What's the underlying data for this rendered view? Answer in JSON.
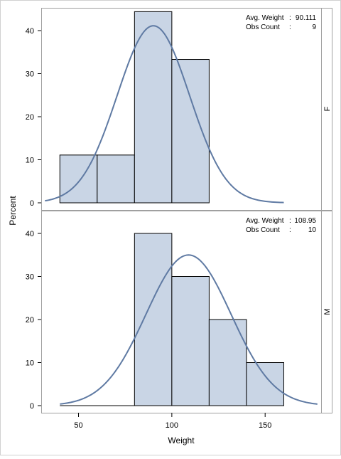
{
  "chart_data": {
    "type": "histogram",
    "ylabel": "Percent",
    "xlabel": "Weight",
    "x_ticks": [
      50,
      100,
      150
    ],
    "xlim": [
      30,
      180
    ],
    "y_ticks": [
      0,
      10,
      20,
      30,
      40
    ],
    "ylim": [
      0,
      45
    ],
    "colors": {
      "bar_fill": "#c9d5e5",
      "bar_stroke": "#000000",
      "curve": "#5f7aa3",
      "frame": "#a0a0a0"
    },
    "panels": [
      {
        "label": "F",
        "stats": [
          {
            "label": "Avg. Weight",
            "sep": ":",
            "value": "90.111"
          },
          {
            "label": "Obs Count",
            "sep": ":",
            "value": "9"
          }
        ],
        "bins": [
          {
            "start": 40,
            "end": 60,
            "percent": 11.1
          },
          {
            "start": 60,
            "end": 80,
            "percent": 11.1
          },
          {
            "start": 80,
            "end": 100,
            "percent": 44.4
          },
          {
            "start": 100,
            "end": 120,
            "percent": 33.3
          }
        ],
        "normal_curve": {
          "mean": 90.111,
          "std": 19.4,
          "x_range": [
            32,
            160
          ]
        }
      },
      {
        "label": "M",
        "stats": [
          {
            "label": "Avg. Weight",
            "sep": ":",
            "value": "108.95"
          },
          {
            "label": "Obs Count",
            "sep": ":",
            "value": "10"
          }
        ],
        "bins": [
          {
            "start": 40,
            "end": 60,
            "percent": 0
          },
          {
            "start": 60,
            "end": 80,
            "percent": 0
          },
          {
            "start": 80,
            "end": 100,
            "percent": 40
          },
          {
            "start": 100,
            "end": 120,
            "percent": 30
          },
          {
            "start": 120,
            "end": 140,
            "percent": 20
          },
          {
            "start": 140,
            "end": 160,
            "percent": 10
          }
        ],
        "normal_curve": {
          "mean": 108.95,
          "std": 22.8,
          "x_range": [
            40,
            178
          ]
        }
      }
    ]
  }
}
